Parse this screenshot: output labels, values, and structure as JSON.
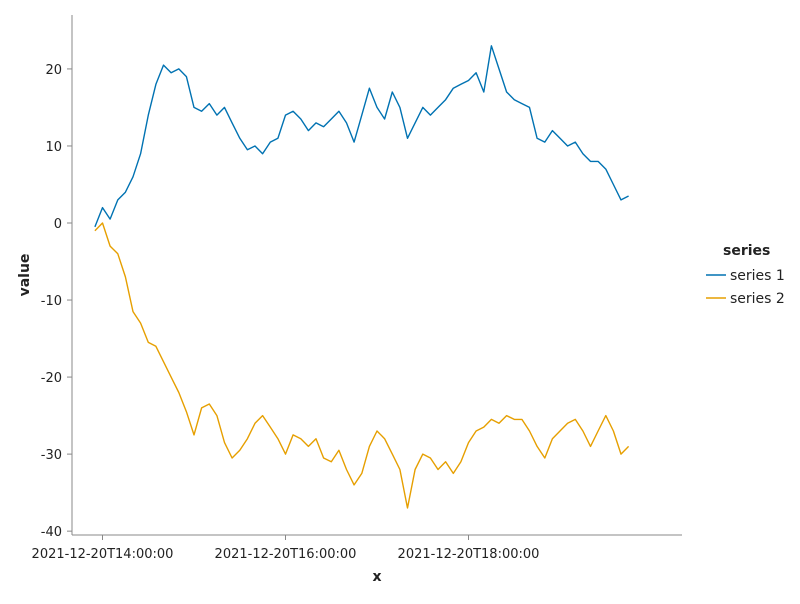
{
  "chart_data": {
    "type": "line",
    "xlabel": "x",
    "ylabel": "value",
    "x_range": [
      "2021-12-20T13:40:00",
      "2021-12-20T20:20:00"
    ],
    "ylim": [
      -40.5,
      27
    ],
    "x_ticks": [
      "2021-12-20T14:00:00",
      "2021-12-20T16:00:00",
      "2021-12-20T18:00:00"
    ],
    "y_ticks": [
      20,
      10,
      0,
      -10,
      -20,
      -30,
      -40
    ],
    "y_tick_labels": [
      "20",
      "10",
      "0",
      "-10",
      "-20",
      "-30",
      "-40"
    ],
    "grid": false,
    "legend": {
      "title": "series",
      "placement": "right"
    },
    "series": [
      {
        "name": "series 1",
        "color": "#0072b2",
        "points": [
          [
            "2021-12-20T13:55:00",
            -0.5
          ],
          [
            "2021-12-20T14:00:00",
            2
          ],
          [
            "2021-12-20T14:05:00",
            0.5
          ],
          [
            "2021-12-20T14:10:00",
            3
          ],
          [
            "2021-12-20T14:15:00",
            4
          ],
          [
            "2021-12-20T14:20:00",
            6
          ],
          [
            "2021-12-20T14:25:00",
            9
          ],
          [
            "2021-12-20T14:30:00",
            14
          ],
          [
            "2021-12-20T14:35:00",
            18
          ],
          [
            "2021-12-20T14:40:00",
            20.5
          ],
          [
            "2021-12-20T14:45:00",
            19.5
          ],
          [
            "2021-12-20T14:50:00",
            20
          ],
          [
            "2021-12-20T14:55:00",
            19
          ],
          [
            "2021-12-20T15:00:00",
            15
          ],
          [
            "2021-12-20T15:05:00",
            14.5
          ],
          [
            "2021-12-20T15:10:00",
            15.5
          ],
          [
            "2021-12-20T15:15:00",
            14
          ],
          [
            "2021-12-20T15:20:00",
            15
          ],
          [
            "2021-12-20T15:25:00",
            13
          ],
          [
            "2021-12-20T15:30:00",
            11
          ],
          [
            "2021-12-20T15:35:00",
            9.5
          ],
          [
            "2021-12-20T15:40:00",
            10
          ],
          [
            "2021-12-20T15:45:00",
            9
          ],
          [
            "2021-12-20T15:50:00",
            10.5
          ],
          [
            "2021-12-20T15:55:00",
            11
          ],
          [
            "2021-12-20T16:00:00",
            14
          ],
          [
            "2021-12-20T16:05:00",
            14.5
          ],
          [
            "2021-12-20T16:10:00",
            13.5
          ],
          [
            "2021-12-20T16:15:00",
            12
          ],
          [
            "2021-12-20T16:20:00",
            13
          ],
          [
            "2021-12-20T16:25:00",
            12.5
          ],
          [
            "2021-12-20T16:30:00",
            13.5
          ],
          [
            "2021-12-20T16:35:00",
            14.5
          ],
          [
            "2021-12-20T16:40:00",
            13
          ],
          [
            "2021-12-20T16:45:00",
            10.5
          ],
          [
            "2021-12-20T16:50:00",
            14
          ],
          [
            "2021-12-20T16:55:00",
            17.5
          ],
          [
            "2021-12-20T17:00:00",
            15
          ],
          [
            "2021-12-20T17:05:00",
            13.5
          ],
          [
            "2021-12-20T17:10:00",
            17
          ],
          [
            "2021-12-20T17:15:00",
            15
          ],
          [
            "2021-12-20T17:20:00",
            11
          ],
          [
            "2021-12-20T17:25:00",
            13
          ],
          [
            "2021-12-20T17:30:00",
            15
          ],
          [
            "2021-12-20T17:35:00",
            14
          ],
          [
            "2021-12-20T17:40:00",
            15
          ],
          [
            "2021-12-20T17:45:00",
            16
          ],
          [
            "2021-12-20T17:50:00",
            17.5
          ],
          [
            "2021-12-20T17:55:00",
            18
          ],
          [
            "2021-12-20T18:00:00",
            18.5
          ],
          [
            "2021-12-20T18:05:00",
            19.5
          ],
          [
            "2021-12-20T18:10:00",
            17
          ],
          [
            "2021-12-20T18:15:00",
            23
          ],
          [
            "2021-12-20T18:20:00",
            20
          ],
          [
            "2021-12-20T18:25:00",
            17
          ],
          [
            "2021-12-20T18:30:00",
            16
          ],
          [
            "2021-12-20T18:35:00",
            15.5
          ],
          [
            "2021-12-20T18:40:00",
            15
          ],
          [
            "2021-12-20T18:45:00",
            11
          ],
          [
            "2021-12-20T18:50:00",
            10.5
          ],
          [
            "2021-12-20T18:55:00",
            12
          ],
          [
            "2021-12-20T19:00:00",
            11
          ],
          [
            "2021-12-20T19:05:00",
            10
          ],
          [
            "2021-12-20T19:10:00",
            10.5
          ],
          [
            "2021-12-20T19:15:00",
            9
          ],
          [
            "2021-12-20T19:20:00",
            8
          ],
          [
            "2021-12-20T19:25:00",
            8
          ],
          [
            "2021-12-20T19:30:00",
            7
          ],
          [
            "2021-12-20T19:35:00",
            5
          ],
          [
            "2021-12-20T19:40:00",
            3
          ],
          [
            "2021-12-20T19:45:00",
            3.5
          ]
        ]
      },
      {
        "name": "series 2",
        "color": "#e69f00",
        "points": [
          [
            "2021-12-20T13:55:00",
            -1
          ],
          [
            "2021-12-20T14:00:00",
            0
          ],
          [
            "2021-12-20T14:05:00",
            -3
          ],
          [
            "2021-12-20T14:10:00",
            -4
          ],
          [
            "2021-12-20T14:15:00",
            -7
          ],
          [
            "2021-12-20T14:20:00",
            -11.5
          ],
          [
            "2021-12-20T14:25:00",
            -13
          ],
          [
            "2021-12-20T14:30:00",
            -15.5
          ],
          [
            "2021-12-20T14:35:00",
            -16
          ],
          [
            "2021-12-20T14:40:00",
            -18
          ],
          [
            "2021-12-20T14:45:00",
            -20
          ],
          [
            "2021-12-20T14:50:00",
            -22
          ],
          [
            "2021-12-20T14:55:00",
            -24.5
          ],
          [
            "2021-12-20T15:00:00",
            -27.5
          ],
          [
            "2021-12-20T15:05:00",
            -24
          ],
          [
            "2021-12-20T15:10:00",
            -23.5
          ],
          [
            "2021-12-20T15:15:00",
            -25
          ],
          [
            "2021-12-20T15:20:00",
            -28.5
          ],
          [
            "2021-12-20T15:25:00",
            -30.5
          ],
          [
            "2021-12-20T15:30:00",
            -29.5
          ],
          [
            "2021-12-20T15:35:00",
            -28
          ],
          [
            "2021-12-20T15:40:00",
            -26
          ],
          [
            "2021-12-20T15:45:00",
            -25
          ],
          [
            "2021-12-20T15:50:00",
            -26.5
          ],
          [
            "2021-12-20T15:55:00",
            -28
          ],
          [
            "2021-12-20T16:00:00",
            -30
          ],
          [
            "2021-12-20T16:05:00",
            -27.5
          ],
          [
            "2021-12-20T16:10:00",
            -28
          ],
          [
            "2021-12-20T16:15:00",
            -29
          ],
          [
            "2021-12-20T16:20:00",
            -28
          ],
          [
            "2021-12-20T16:25:00",
            -30.5
          ],
          [
            "2021-12-20T16:30:00",
            -31
          ],
          [
            "2021-12-20T16:35:00",
            -29.5
          ],
          [
            "2021-12-20T16:40:00",
            -32
          ],
          [
            "2021-12-20T16:45:00",
            -34
          ],
          [
            "2021-12-20T16:50:00",
            -32.5
          ],
          [
            "2021-12-20T16:55:00",
            -29
          ],
          [
            "2021-12-20T17:00:00",
            -27
          ],
          [
            "2021-12-20T17:05:00",
            -28
          ],
          [
            "2021-12-20T17:10:00",
            -30
          ],
          [
            "2021-12-20T17:15:00",
            -32
          ],
          [
            "2021-12-20T17:20:00",
            -37
          ],
          [
            "2021-12-20T17:25:00",
            -32
          ],
          [
            "2021-12-20T17:30:00",
            -30
          ],
          [
            "2021-12-20T17:35:00",
            -30.5
          ],
          [
            "2021-12-20T17:40:00",
            -32
          ],
          [
            "2021-12-20T17:45:00",
            -31
          ],
          [
            "2021-12-20T17:50:00",
            -32.5
          ],
          [
            "2021-12-20T17:55:00",
            -31
          ],
          [
            "2021-12-20T18:00:00",
            -28.5
          ],
          [
            "2021-12-20T18:05:00",
            -27
          ],
          [
            "2021-12-20T18:10:00",
            -26.5
          ],
          [
            "2021-12-20T18:15:00",
            -25.5
          ],
          [
            "2021-12-20T18:20:00",
            -26
          ],
          [
            "2021-12-20T18:25:00",
            -25
          ],
          [
            "2021-12-20T18:30:00",
            -25.5
          ],
          [
            "2021-12-20T18:35:00",
            -25.5
          ],
          [
            "2021-12-20T18:40:00",
            -27
          ],
          [
            "2021-12-20T18:45:00",
            -29
          ],
          [
            "2021-12-20T18:50:00",
            -30.5
          ],
          [
            "2021-12-20T18:55:00",
            -28
          ],
          [
            "2021-12-20T19:00:00",
            -27
          ],
          [
            "2021-12-20T19:05:00",
            -26
          ],
          [
            "2021-12-20T19:10:00",
            -25.5
          ],
          [
            "2021-12-20T19:15:00",
            -27
          ],
          [
            "2021-12-20T19:20:00",
            -29
          ],
          [
            "2021-12-20T19:25:00",
            -27
          ],
          [
            "2021-12-20T19:30:00",
            -25
          ],
          [
            "2021-12-20T19:35:00",
            -27
          ],
          [
            "2021-12-20T19:40:00",
            -30
          ],
          [
            "2021-12-20T19:45:00",
            -29
          ]
        ]
      }
    ]
  }
}
